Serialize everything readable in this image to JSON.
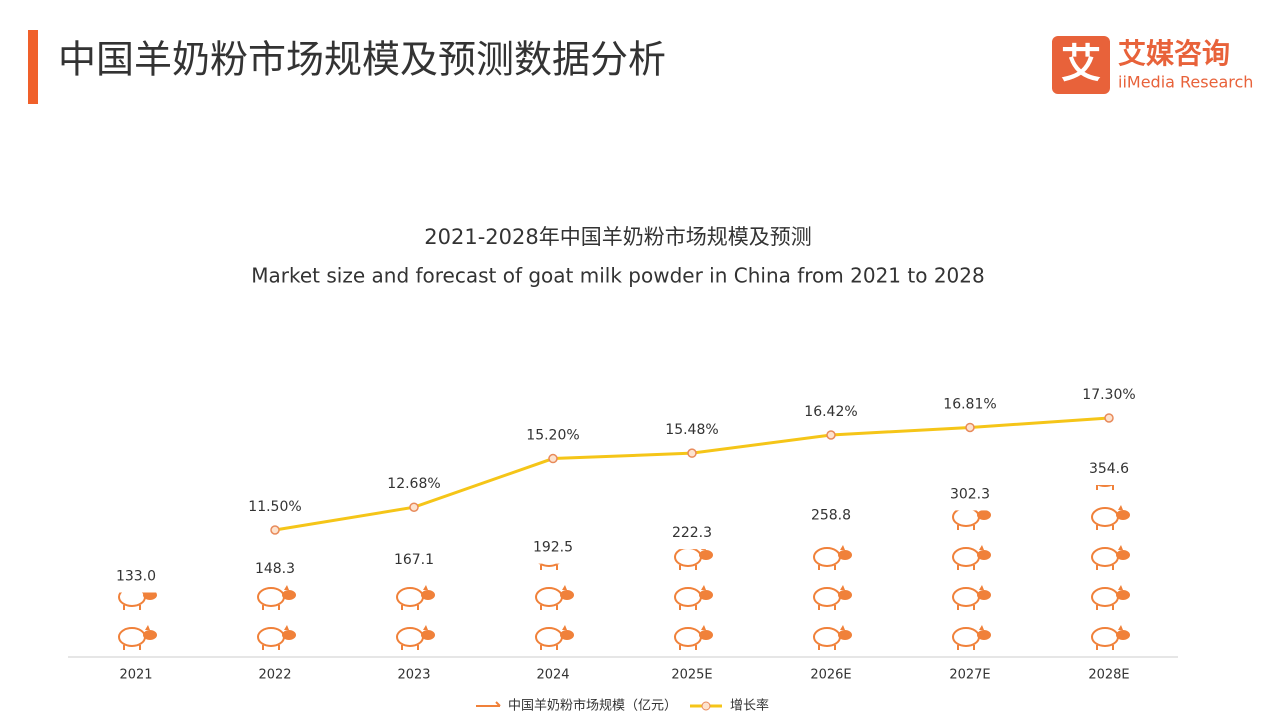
{
  "header": {
    "title": "中国羊奶粉市场规模及预测数据分析",
    "logo_mark": "艾",
    "logo_text": "艾媒咨询",
    "logo_sub": "iiMedia Research"
  },
  "chart_data": {
    "type": "bar",
    "title": "2021-2028年中国羊奶粉市场规模及预测",
    "subtitle": "Market size and forecast of goat milk powder in China from 2021 to 2028",
    "categories": [
      "2021",
      "2022",
      "2023",
      "2024",
      "2025E",
      "2026E",
      "2027E",
      "2028E"
    ],
    "series": [
      {
        "name": "中国羊奶粉市场规模（亿元）",
        "type": "pictograph",
        "color": "#f0813a",
        "values": [
          133.0,
          148.3,
          167.1,
          192.5,
          222.3,
          258.8,
          302.3,
          354.6
        ],
        "value_labels": [
          "133.0",
          "148.3",
          "167.1",
          "192.5",
          "222.3",
          "258.8",
          "302.3",
          "354.6"
        ]
      },
      {
        "name": "增长率",
        "type": "line",
        "color": "#f5c518",
        "values": [
          null,
          11.5,
          12.68,
          15.2,
          15.48,
          16.42,
          16.81,
          17.3
        ],
        "value_labels": [
          null,
          "11.50%",
          "12.68%",
          "15.20%",
          "15.48%",
          "16.42%",
          "16.81%",
          "17.30%"
        ]
      }
    ]
  }
}
